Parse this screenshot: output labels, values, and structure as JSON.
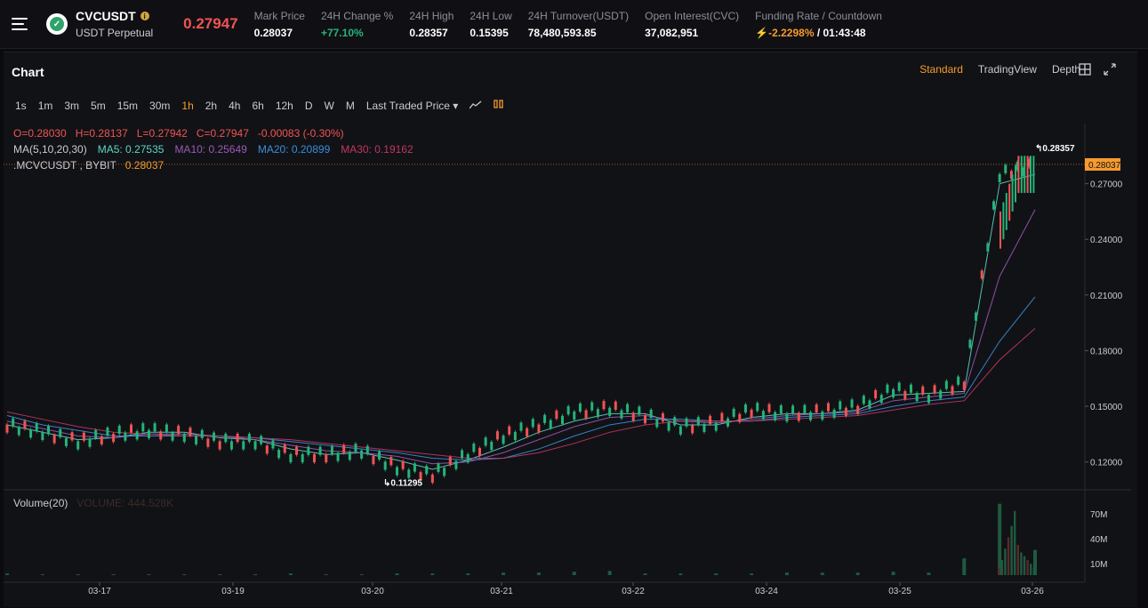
{
  "header": {
    "symbol": "CVCUSDT",
    "contract": "USDT Perpetual",
    "last_price": "0.27947",
    "stats": [
      {
        "label": "Mark Price",
        "value": "0.28037",
        "color": "#ffffff"
      },
      {
        "label": "24H Change %",
        "value": "+77.10%",
        "color": "#26b37a"
      },
      {
        "label": "24H High",
        "value": "0.28357",
        "color": "#ffffff"
      },
      {
        "label": "24H Low",
        "value": "0.15395",
        "color": "#ffffff"
      },
      {
        "label": "24H Turnover(USDT)",
        "value": "78,480,593.85",
        "color": "#ffffff"
      },
      {
        "label": "Open Interest(CVC)",
        "value": "37,082,951",
        "color": "#ffffff"
      }
    ],
    "funding_label": "Funding Rate / Countdown",
    "funding_rate": "-2.2298%",
    "countdown": "/ 01:43:48"
  },
  "chart": {
    "title": "Chart",
    "views": [
      "Standard",
      "TradingView",
      "Depth"
    ],
    "active_view": "Standard",
    "intervals": [
      "1s",
      "1m",
      "3m",
      "5m",
      "15m",
      "30m",
      "1h",
      "2h",
      "4h",
      "6h",
      "12h",
      "D",
      "W",
      "M"
    ],
    "active_interval": "1h",
    "price_type": "Last Traded Price",
    "ohlc": {
      "o": "O=0.28030",
      "h": "H=0.28137",
      "l": "L=0.27942",
      "c": "C=0.27947",
      "chg": "-0.00083 (-0.30%)"
    },
    "ma": {
      "label": "MA(5,10,20,30)",
      "ma5": "MA5: 0.27535",
      "ma10": "MA10: 0.25649",
      "ma20": "MA20: 0.20899",
      "ma30": "MA30: 0.19162"
    },
    "index_label": ".MCVCUSDT , BYBIT",
    "index_value": "0.28037",
    "volume_label": "Volume(20)",
    "volume_value": "VOLUME: 444.528K",
    "high_marker": "0.28357",
    "low_marker": "0.11295",
    "current_tag": "0.28037"
  },
  "chart_data": {
    "type": "line",
    "title": "",
    "x_ticks": [
      "03-17",
      "03-19",
      "03-20",
      "03-21",
      "03-22",
      "03-24",
      "03-25",
      "03-26"
    ],
    "y_ticks": [
      "0.27000",
      "0.24000",
      "0.21000",
      "0.18000",
      "0.15000",
      "0.12000"
    ],
    "volume_ticks": [
      "70M",
      "40M",
      "10M"
    ],
    "ylim": [
      0.105,
      0.3
    ],
    "series": [
      {
        "name": "MA5",
        "color": "#5fd3c4",
        "values": [
          0.14,
          0.136,
          0.132,
          0.133,
          0.136,
          0.136,
          0.133,
          0.132,
          0.127,
          0.124,
          0.125,
          0.121,
          0.116,
          0.121,
          0.128,
          0.136,
          0.142,
          0.146,
          0.146,
          0.14,
          0.14,
          0.144,
          0.146,
          0.146,
          0.148,
          0.156,
          0.157,
          0.158,
          0.27,
          0.275
        ]
      },
      {
        "name": "MA10",
        "color": "#9b59b6",
        "values": [
          0.142,
          0.138,
          0.134,
          0.133,
          0.135,
          0.135,
          0.134,
          0.132,
          0.129,
          0.126,
          0.125,
          0.123,
          0.119,
          0.12,
          0.125,
          0.132,
          0.139,
          0.144,
          0.145,
          0.142,
          0.141,
          0.143,
          0.145,
          0.146,
          0.147,
          0.153,
          0.155,
          0.157,
          0.22,
          0.256
        ]
      },
      {
        "name": "MA20",
        "color": "#3a8fd9",
        "values": [
          0.145,
          0.14,
          0.137,
          0.134,
          0.134,
          0.134,
          0.134,
          0.133,
          0.131,
          0.129,
          0.127,
          0.125,
          0.122,
          0.121,
          0.122,
          0.127,
          0.134,
          0.14,
          0.143,
          0.143,
          0.142,
          0.142,
          0.144,
          0.145,
          0.146,
          0.15,
          0.153,
          0.155,
          0.185,
          0.209
        ]
      },
      {
        "name": "MA30",
        "color": "#c2375f",
        "values": [
          0.147,
          0.143,
          0.139,
          0.136,
          0.135,
          0.134,
          0.134,
          0.133,
          0.132,
          0.13,
          0.128,
          0.126,
          0.124,
          0.122,
          0.122,
          0.125,
          0.13,
          0.136,
          0.14,
          0.142,
          0.142,
          0.142,
          0.143,
          0.144,
          0.145,
          0.148,
          0.151,
          0.153,
          0.175,
          0.192
        ]
      }
    ],
    "price": [
      0.14,
      0.136,
      0.131,
      0.135,
      0.137,
      0.135,
      0.131,
      0.131,
      0.124,
      0.124,
      0.126,
      0.117,
      0.113,
      0.124,
      0.134,
      0.14,
      0.147,
      0.149,
      0.145,
      0.139,
      0.141,
      0.148,
      0.146,
      0.147,
      0.15,
      0.159,
      0.156,
      0.163,
      0.275,
      0.28
    ],
    "volume_m": [
      2,
      1,
      1,
      1,
      1,
      1,
      1,
      1,
      2,
      1,
      1,
      2,
      2,
      2,
      3,
      3,
      4,
      5,
      2,
      2,
      2,
      2,
      3,
      3,
      3,
      4,
      3,
      20,
      85,
      30
    ]
  }
}
